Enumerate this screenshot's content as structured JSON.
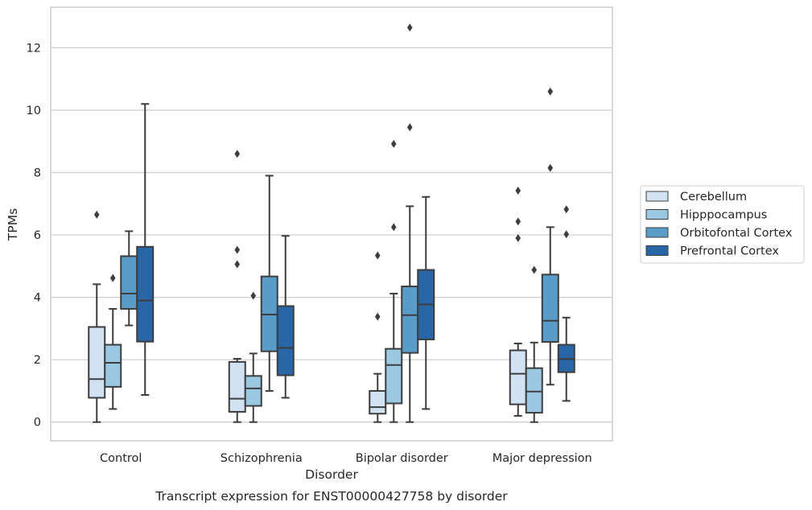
{
  "chart_data": {
    "type": "box",
    "title": "",
    "caption": "Transcript expression for ENST00000427758 by disorder",
    "xlabel": "Disorder",
    "ylabel": "TPMs",
    "ylim": [
      -0.6,
      13.3
    ],
    "yticks": [
      0,
      2,
      4,
      6,
      8,
      10,
      12
    ],
    "grid": "horizontal",
    "legend_placement": "right",
    "categories": [
      "Control",
      "Schizophrenia",
      "Bipolar disorder",
      "Major depression"
    ],
    "series": [
      {
        "name": "Cerebellum",
        "color": "#d1e2f2",
        "boxes": [
          {
            "whislo": 0.0,
            "q1": 0.78,
            "med": 1.38,
            "q3": 3.05,
            "whishi": 4.42,
            "fliers": [
              6.65
            ]
          },
          {
            "whislo": 0.0,
            "q1": 0.33,
            "med": 0.75,
            "q3": 1.93,
            "whishi": 2.03,
            "fliers": [
              8.6,
              5.52,
              5.06
            ]
          },
          {
            "whislo": 0.0,
            "q1": 0.27,
            "med": 0.48,
            "q3": 1.0,
            "whishi": 1.55,
            "fliers": [
              5.34,
              3.38
            ]
          },
          {
            "whislo": 0.2,
            "q1": 0.57,
            "med": 1.55,
            "q3": 2.3,
            "whishi": 2.52,
            "fliers": [
              7.42,
              6.43,
              5.9
            ]
          }
        ]
      },
      {
        "name": "Hipppocampus",
        "color": "#9ac8e0",
        "boxes": [
          {
            "whislo": 0.42,
            "q1": 1.13,
            "med": 1.9,
            "q3": 2.48,
            "whishi": 3.63,
            "fliers": [
              4.62
            ]
          },
          {
            "whislo": 0.0,
            "q1": 0.52,
            "med": 1.08,
            "q3": 1.48,
            "whishi": 2.2,
            "fliers": [
              4.05
            ]
          },
          {
            "whislo": 0.0,
            "q1": 0.6,
            "med": 1.83,
            "q3": 2.35,
            "whishi": 4.12,
            "fliers": [
              8.92,
              6.25
            ]
          },
          {
            "whislo": 0.0,
            "q1": 0.3,
            "med": 0.98,
            "q3": 1.73,
            "whishi": 2.55,
            "fliers": [
              4.88
            ]
          }
        ]
      },
      {
        "name": "Orbitofontal Cortex",
        "color": "#5a9cc8",
        "boxes": [
          {
            "whislo": 3.1,
            "q1": 3.63,
            "med": 4.12,
            "q3": 5.32,
            "whishi": 6.12,
            "fliers": []
          },
          {
            "whislo": 1.0,
            "q1": 2.27,
            "med": 3.45,
            "q3": 4.67,
            "whishi": 7.9,
            "fliers": []
          },
          {
            "whislo": 0.0,
            "q1": 2.22,
            "med": 3.43,
            "q3": 4.35,
            "whishi": 6.92,
            "fliers": [
              12.65,
              9.45
            ]
          },
          {
            "whislo": 1.2,
            "q1": 2.57,
            "med": 3.25,
            "q3": 4.73,
            "whishi": 6.25,
            "fliers": [
              10.6,
              8.15
            ]
          }
        ]
      },
      {
        "name": "Prefrontal Cortex",
        "color": "#2966a8",
        "boxes": [
          {
            "whislo": 0.87,
            "q1": 2.58,
            "med": 3.9,
            "q3": 5.62,
            "whishi": 10.2,
            "fliers": []
          },
          {
            "whislo": 0.78,
            "q1": 1.5,
            "med": 2.38,
            "q3": 3.72,
            "whishi": 5.97,
            "fliers": []
          },
          {
            "whislo": 0.42,
            "q1": 2.65,
            "med": 3.77,
            "q3": 4.88,
            "whishi": 7.22,
            "fliers": []
          },
          {
            "whislo": 0.68,
            "q1": 1.6,
            "med": 2.02,
            "q3": 2.48,
            "whishi": 3.35,
            "fliers": [
              6.82,
              6.02
            ]
          }
        ]
      }
    ]
  }
}
